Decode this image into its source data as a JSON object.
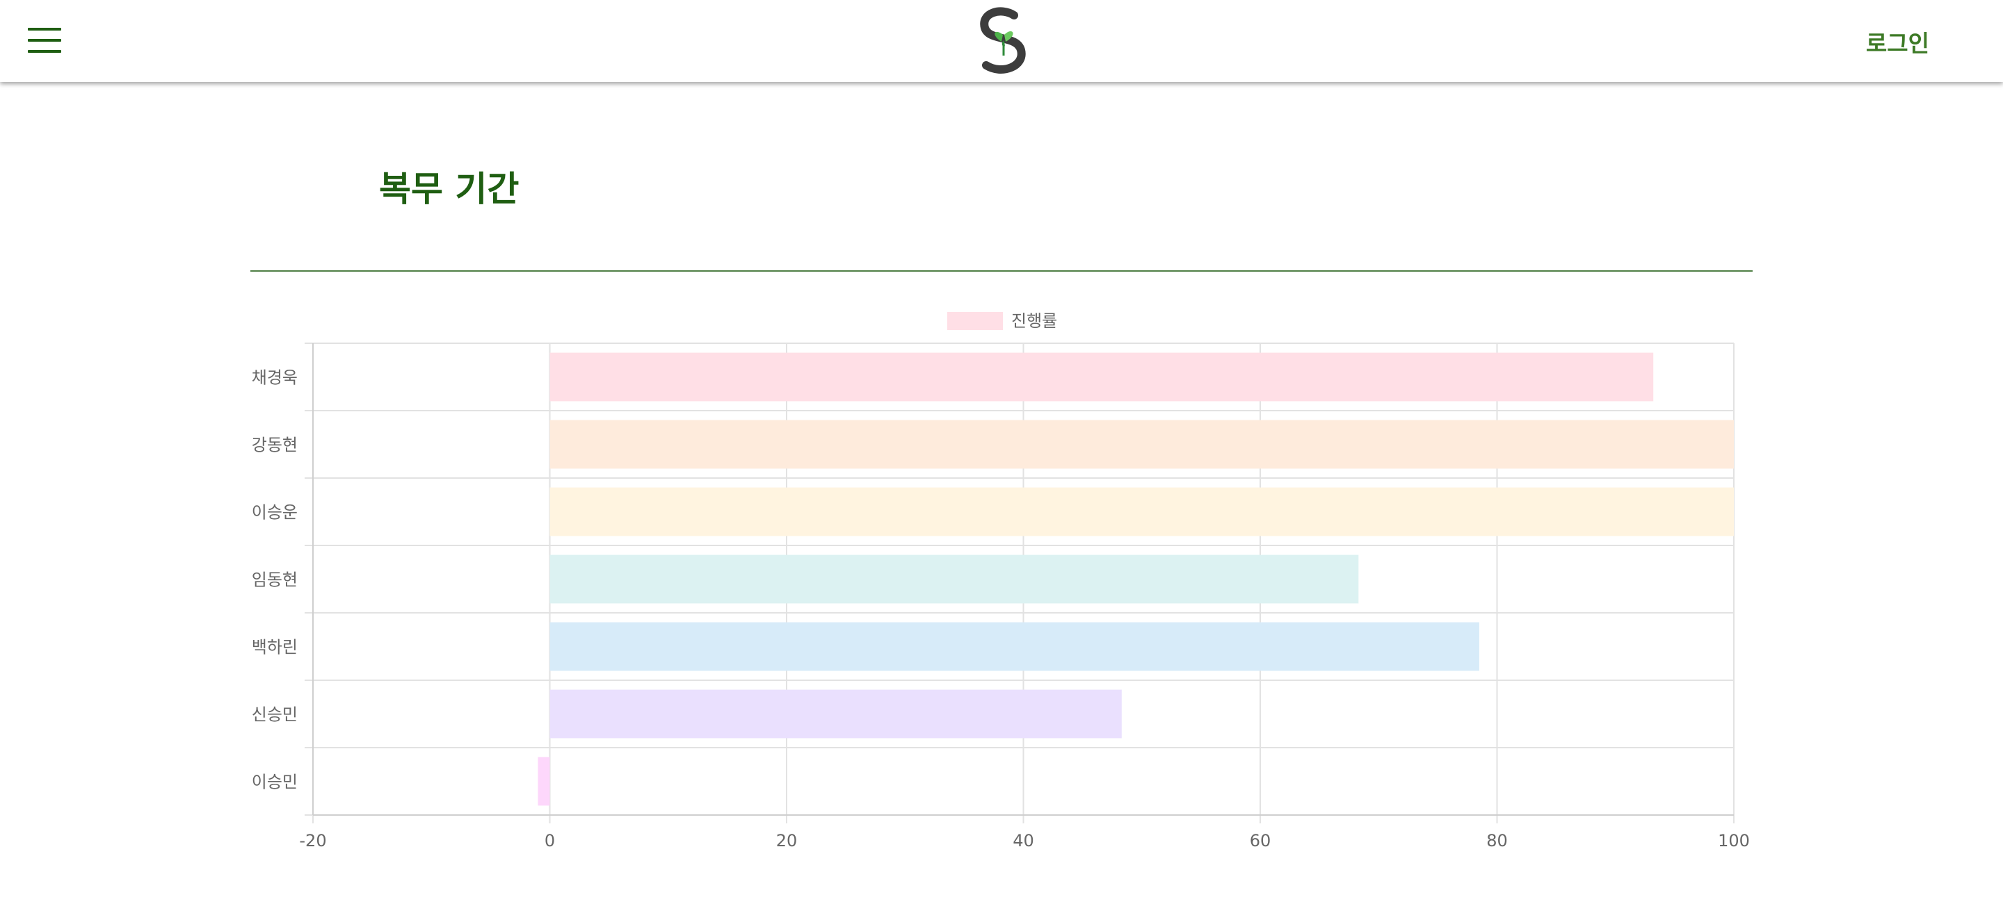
{
  "header": {
    "login_label": "로그인",
    "icons": {
      "menu": "hamburger-menu-icon",
      "logo": "plant-logo-icon"
    },
    "accent_color": "#1f5e12"
  },
  "page": {
    "title": "복무 기간"
  },
  "chart_data": {
    "type": "bar",
    "orientation": "horizontal",
    "categories": [
      "채경욱",
      "강동현",
      "이승운",
      "임동현",
      "백하린",
      "신승민",
      "이승민"
    ],
    "series": [
      {
        "name": "진행률",
        "values": [
          93.2,
          100,
          100,
          68.3,
          78.5,
          48.3,
          -1
        ]
      }
    ],
    "colors": [
      [
        "#ffdfe6",
        "#ffb6c4"
      ],
      [
        "#feebdc",
        "#fdc9a3"
      ],
      [
        "#fff4e0",
        "#fde0a8"
      ],
      [
        "#dcf2f2",
        "#a8dede"
      ],
      [
        "#d7ebf9",
        "#a6d2f2"
      ],
      [
        "#eae0fe",
        "#c9b3fb"
      ],
      [
        "#fdd7fb",
        "#f8a6f3"
      ]
    ],
    "xlim": [
      -20,
      100
    ],
    "xticks": [
      -20,
      0,
      20,
      40,
      60,
      80,
      100
    ],
    "grid": true,
    "legend": "top-center",
    "title": "",
    "xlabel": "",
    "ylabel": ""
  }
}
